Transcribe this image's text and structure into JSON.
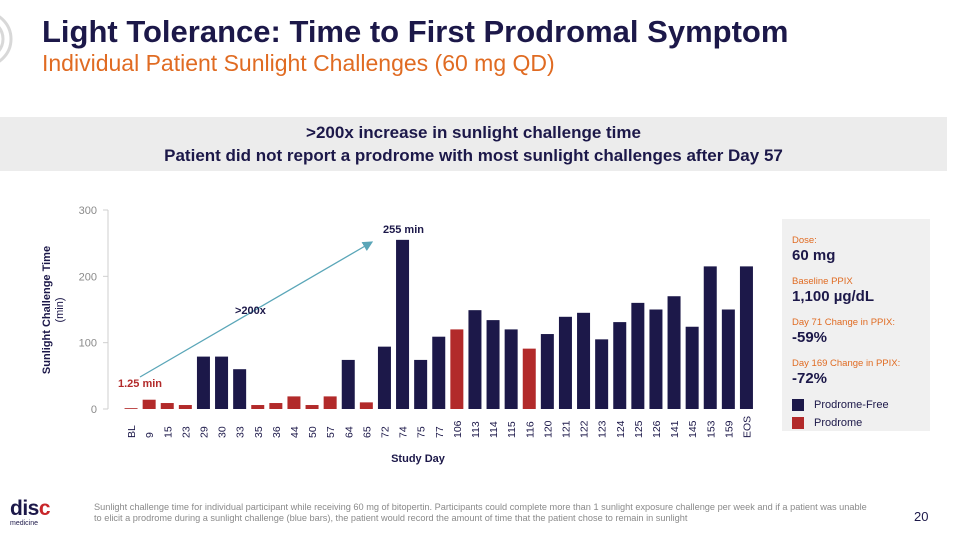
{
  "header": {
    "title": "Light Tolerance: Time to First Prodromal Symptom",
    "subtitle": "Individual Patient Sunlight Challenges (60 mg QD)"
  },
  "banner": {
    "line1": ">200x increase in sunlight challenge time",
    "line2": "Patient did not report a prodrome with most sunlight challenges after Day 57"
  },
  "chart_data": {
    "type": "bar",
    "xlabel": "Study Day",
    "ylabel": "Sunlight Challenge Time",
    "ylabel_unit": "(min)",
    "ylim": [
      0,
      300
    ],
    "yticks": [
      0,
      100,
      200,
      300
    ],
    "grid": false,
    "categories": [
      "BL",
      "9",
      "15",
      "23",
      "29",
      "30",
      "33",
      "35",
      "36",
      "44",
      "50",
      "57",
      "64",
      "65",
      "72",
      "74",
      "75",
      "77",
      "106",
      "113",
      "114",
      "115",
      "116",
      "120",
      "121",
      "122",
      "123",
      "124",
      "125",
      "126",
      "141",
      "145",
      "153",
      "159",
      "EOS"
    ],
    "values": [
      1.25,
      14,
      9,
      6,
      79,
      79,
      60,
      6,
      9,
      19,
      6,
      19,
      74,
      10,
      94,
      255,
      74,
      109,
      120,
      149,
      134,
      120,
      91,
      113,
      139,
      145,
      105,
      131,
      160,
      150,
      170,
      124,
      215,
      150,
      215
    ],
    "status": [
      "Prodrome",
      "Prodrome",
      "Prodrome",
      "Prodrome",
      "Prodrome-Free",
      "Prodrome-Free",
      "Prodrome-Free",
      "Prodrome",
      "Prodrome",
      "Prodrome",
      "Prodrome",
      "Prodrome",
      "Prodrome-Free",
      "Prodrome",
      "Prodrome-Free",
      "Prodrome-Free",
      "Prodrome-Free",
      "Prodrome-Free",
      "Prodrome",
      "Prodrome-Free",
      "Prodrome-Free",
      "Prodrome-Free",
      "Prodrome",
      "Prodrome-Free",
      "Prodrome-Free",
      "Prodrome-Free",
      "Prodrome-Free",
      "Prodrome-Free",
      "Prodrome-Free",
      "Prodrome-Free",
      "Prodrome-Free",
      "Prodrome-Free",
      "Prodrome-Free",
      "Prodrome-Free",
      "Prodrome-Free"
    ],
    "colors": {
      "Prodrome-Free": "#1c1849",
      "Prodrome": "#b22a2a"
    },
    "annotations": {
      "start_label": "1.25 min",
      "peak_label": "255 min",
      "arrow_label": ">200x",
      "arrow_color": "#5aa6b8"
    }
  },
  "side_panel": {
    "items": [
      {
        "label": "Dose:",
        "value": "60 mg"
      },
      {
        "label": "Baseline PPIX",
        "value": "1,100 µg/dL"
      },
      {
        "label": "Day 71 Change in PPIX:",
        "value": "-59%"
      },
      {
        "label": "Day 169 Change in PPIX:",
        "value": "-72%"
      }
    ],
    "legend": [
      {
        "label": "Prodrome-Free",
        "color": "#1c1849"
      },
      {
        "label": "Prodrome",
        "color": "#b22a2a"
      }
    ]
  },
  "footnote": "Sunlight challenge time for individual participant while receiving 60 mg of bitopertin. Participants could complete more than 1 sunlight exposure challenge per week and if a patient was unable to elicit a prodrome during a sunlight challenge (blue bars), the patient would record the amount of time that the patient chose to remain in sunlight",
  "page_number": "20",
  "logo": {
    "line1a": "dis",
    "line1b": "c",
    "line2": "medicine"
  }
}
